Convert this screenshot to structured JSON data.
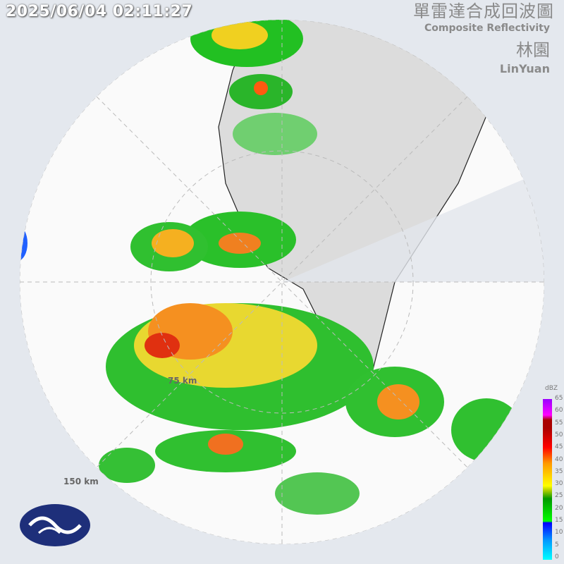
{
  "timestamp": "2025/06/04 02:11:27",
  "title_zh": "單雷達合成回波圖",
  "title_en": "Composite Reflectivity",
  "station_zh": "林園",
  "station_en": "LinYuan",
  "range_labels": [
    "75 km",
    "150 km"
  ],
  "legend": {
    "unit": "dBZ",
    "ticks": [
      "65",
      "60",
      "55",
      "50",
      "45",
      "40",
      "35",
      "30",
      "25",
      "20",
      "15",
      "10",
      "5",
      "0"
    ],
    "colors": [
      "#00ffff",
      "#0099ff",
      "#0000ff",
      "#00ff00",
      "#009900",
      "#ffff00",
      "#ff9900",
      "#ff0000",
      "#aa0000",
      "#ff00ff",
      "#9900ff"
    ]
  },
  "logo": "cwa-logo"
}
